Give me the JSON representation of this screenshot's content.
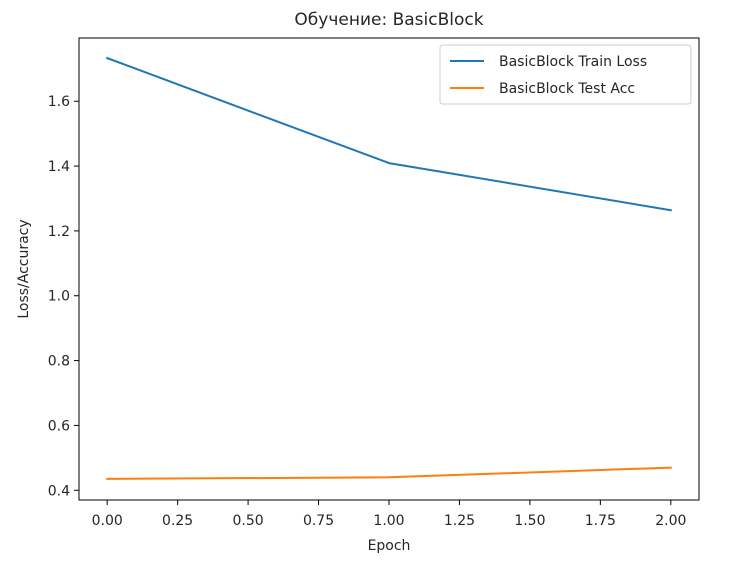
{
  "chart_data": {
    "type": "line",
    "title": "Обучение: BasicBlock",
    "xlabel": "Epoch",
    "ylabel": "Loss/Accuracy",
    "x": [
      0,
      1,
      2
    ],
    "xlim": [
      -0.1,
      2.1
    ],
    "ylim": [
      0.37,
      1.795
    ],
    "xticks": [
      0,
      0.25,
      0.5,
      0.75,
      1,
      1.25,
      1.5,
      1.75,
      2
    ],
    "xtick_labels": [
      "0.00",
      "0.25",
      "0.50",
      "0.75",
      "1.00",
      "1.25",
      "1.50",
      "1.75",
      "2.00"
    ],
    "yticks": [
      0.4,
      0.6,
      0.8,
      1.0,
      1.2,
      1.4,
      1.6
    ],
    "ytick_labels": [
      "0.4",
      "0.6",
      "0.8",
      "1.0",
      "1.2",
      "1.4",
      "1.6"
    ],
    "grid": false,
    "legend_position": "top-right",
    "series": [
      {
        "name": "BasicBlock Train Loss",
        "color": "#1f77b4",
        "values": [
          1.733,
          1.409,
          1.264
        ]
      },
      {
        "name": "BasicBlock Test Acc",
        "color": "#ff7f0e",
        "values": [
          0.435,
          0.44,
          0.47
        ]
      }
    ]
  }
}
